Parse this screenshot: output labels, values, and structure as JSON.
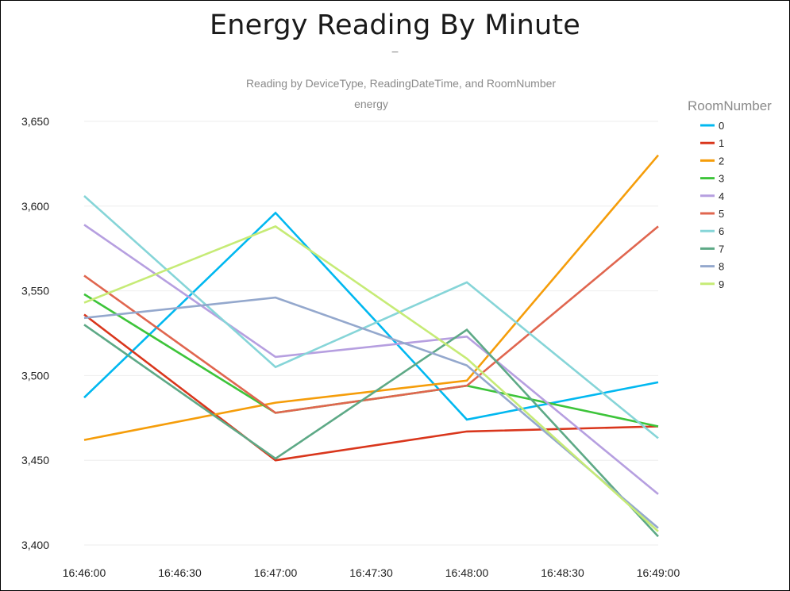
{
  "chart_data": {
    "type": "line",
    "title": "Energy Reading By Minute",
    "title_separator": "–",
    "subtitle": "Reading by DeviceType, ReadingDateTime, and RoomNumber",
    "subtitle2": "energy",
    "x": [
      "16:46:00",
      "16:47:00",
      "16:48:00",
      "16:49:00"
    ],
    "x_ticks": [
      "16:46:00",
      "16:46:30",
      "16:47:00",
      "16:47:30",
      "16:48:00",
      "16:48:30",
      "16:49:00"
    ],
    "y_ticks": [
      3400,
      3450,
      3500,
      3550,
      3600,
      3650
    ],
    "y_tick_labels": [
      "3,400",
      "3,450",
      "3,500",
      "3,550",
      "3,600",
      "3,650"
    ],
    "ylim": [
      3400,
      3650
    ],
    "grid": true,
    "legend_title": "RoomNumber",
    "legend_position": "right",
    "series": [
      {
        "name": "0",
        "color": "#01B8F0",
        "values": [
          3487,
          3596,
          3474,
          3496
        ]
      },
      {
        "name": "1",
        "color": "#D9361C",
        "values": [
          3536,
          3450,
          3467,
          3470
        ]
      },
      {
        "name": "2",
        "color": "#F59D0A",
        "values": [
          3462,
          3484,
          3497,
          3630
        ]
      },
      {
        "name": "3",
        "color": "#3DC43A",
        "values": [
          3548,
          3478,
          3494,
          3470
        ]
      },
      {
        "name": "4",
        "color": "#B69FE0",
        "values": [
          3589,
          3511,
          3523,
          3430
        ]
      },
      {
        "name": "5",
        "color": "#E0664F",
        "values": [
          3559,
          3478,
          3494,
          3588
        ]
      },
      {
        "name": "6",
        "color": "#86D5D8",
        "values": [
          3606,
          3505,
          3555,
          3463
        ]
      },
      {
        "name": "7",
        "color": "#5DA986",
        "values": [
          3530,
          3451,
          3527,
          3405
        ]
      },
      {
        "name": "8",
        "color": "#94A8CD",
        "values": [
          3534,
          3546,
          3506,
          3410
        ]
      },
      {
        "name": "9",
        "color": "#C6EB76",
        "values": [
          3543,
          3588,
          3510,
          3408
        ]
      }
    ]
  }
}
